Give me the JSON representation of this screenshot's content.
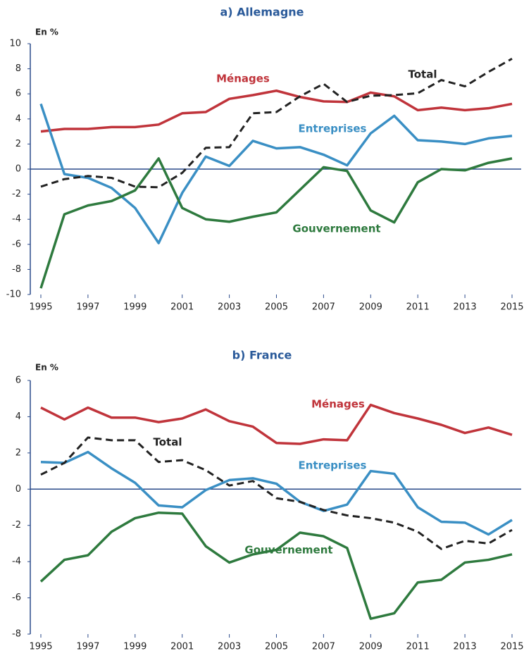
{
  "chart_data": [
    {
      "type": "line",
      "title": "a) Allemagne",
      "y_label": "En %",
      "x": [
        1995,
        1996,
        1997,
        1998,
        1999,
        2000,
        2001,
        2002,
        2003,
        2004,
        2005,
        2006,
        2007,
        2008,
        2009,
        2010,
        2011,
        2012,
        2013,
        2014,
        2015
      ],
      "xlim": [
        1995,
        2015
      ],
      "xticks": [
        1995,
        1997,
        1999,
        2001,
        2003,
        2005,
        2007,
        2009,
        2011,
        2013,
        2015
      ],
      "ylim": [
        -10,
        10
      ],
      "yticks": [
        10,
        8,
        6,
        4,
        2,
        0,
        -2,
        -4,
        -6,
        -8,
        -10
      ],
      "series": [
        {
          "name": "Ménages",
          "color": "#c0343b",
          "values": [
            3.0,
            3.2,
            3.2,
            3.35,
            3.35,
            3.55,
            4.45,
            4.55,
            5.6,
            5.9,
            6.25,
            5.75,
            5.4,
            5.35,
            6.1,
            5.8,
            4.7,
            4.9,
            4.7,
            4.85,
            5.2
          ]
        },
        {
          "name": "Entreprises",
          "color": "#3a8fc4",
          "values": [
            5.2,
            -0.4,
            -0.7,
            -1.5,
            -3.1,
            -5.9,
            -1.9,
            1.0,
            0.25,
            2.25,
            1.65,
            1.75,
            1.15,
            0.3,
            2.85,
            4.25,
            2.3,
            2.2,
            2.0,
            2.45,
            2.65
          ]
        },
        {
          "name": "Gouvernement",
          "color": "#2e7a3e",
          "values": [
            -9.5,
            -3.6,
            -2.9,
            -2.55,
            -1.7,
            0.85,
            -3.1,
            -4.0,
            -4.2,
            -3.8,
            -3.45,
            -1.65,
            0.15,
            -0.15,
            -3.3,
            -4.25,
            -1.05,
            0.0,
            -0.1,
            0.5,
            0.85
          ]
        },
        {
          "name": "Total",
          "color": "#222222",
          "dash": true,
          "values": [
            -1.4,
            -0.8,
            -0.55,
            -0.7,
            -1.4,
            -1.45,
            -0.3,
            1.7,
            1.75,
            4.45,
            4.55,
            5.8,
            6.8,
            5.35,
            5.85,
            5.9,
            6.05,
            7.1,
            6.6,
            7.75,
            8.8
          ]
        }
      ]
    },
    {
      "type": "line",
      "title": "b) France",
      "y_label": "En %",
      "x": [
        1995,
        1996,
        1997,
        1998,
        1999,
        2000,
        2001,
        2002,
        2003,
        2004,
        2005,
        2006,
        2007,
        2008,
        2009,
        2010,
        2011,
        2012,
        2013,
        2014,
        2015
      ],
      "xlim": [
        1995,
        2015
      ],
      "xticks": [
        1995,
        1997,
        1999,
        2001,
        2003,
        2005,
        2007,
        2009,
        2011,
        2013,
        2015
      ],
      "ylim": [
        -8,
        6
      ],
      "yticks": [
        6,
        4,
        2,
        0,
        -2,
        -4,
        -6,
        -8
      ],
      "series": [
        {
          "name": "Ménages",
          "color": "#c0343b",
          "values": [
            4.5,
            3.85,
            4.5,
            3.95,
            3.95,
            3.7,
            3.9,
            4.4,
            3.75,
            3.45,
            2.55,
            2.5,
            2.75,
            2.7,
            4.65,
            4.2,
            3.9,
            3.55,
            3.1,
            3.4,
            3.0
          ]
        },
        {
          "name": "Entreprises",
          "color": "#3a8fc4",
          "values": [
            1.5,
            1.45,
            2.05,
            1.15,
            0.35,
            -0.9,
            -1.0,
            -0.05,
            0.5,
            0.6,
            0.3,
            -0.7,
            -1.2,
            -0.85,
            1.0,
            0.85,
            -1.0,
            -1.8,
            -1.85,
            -2.5,
            -1.7
          ]
        },
        {
          "name": "Gouvernement",
          "color": "#2e7a3e",
          "values": [
            -5.1,
            -3.9,
            -3.65,
            -2.35,
            -1.6,
            -1.3,
            -1.35,
            -3.15,
            -4.05,
            -3.6,
            -3.35,
            -2.4,
            -2.6,
            -3.25,
            -7.15,
            -6.85,
            -5.15,
            -5.0,
            -4.05,
            -3.9,
            -3.6
          ]
        },
        {
          "name": "Total",
          "color": "#222222",
          "dash": true,
          "values": [
            0.8,
            1.45,
            2.85,
            2.7,
            2.7,
            1.5,
            1.6,
            1.05,
            0.2,
            0.45,
            -0.5,
            -0.7,
            -1.15,
            -1.45,
            -1.6,
            -1.85,
            -2.35,
            -3.3,
            -2.85,
            -3.0,
            -2.25
          ]
        }
      ]
    }
  ]
}
